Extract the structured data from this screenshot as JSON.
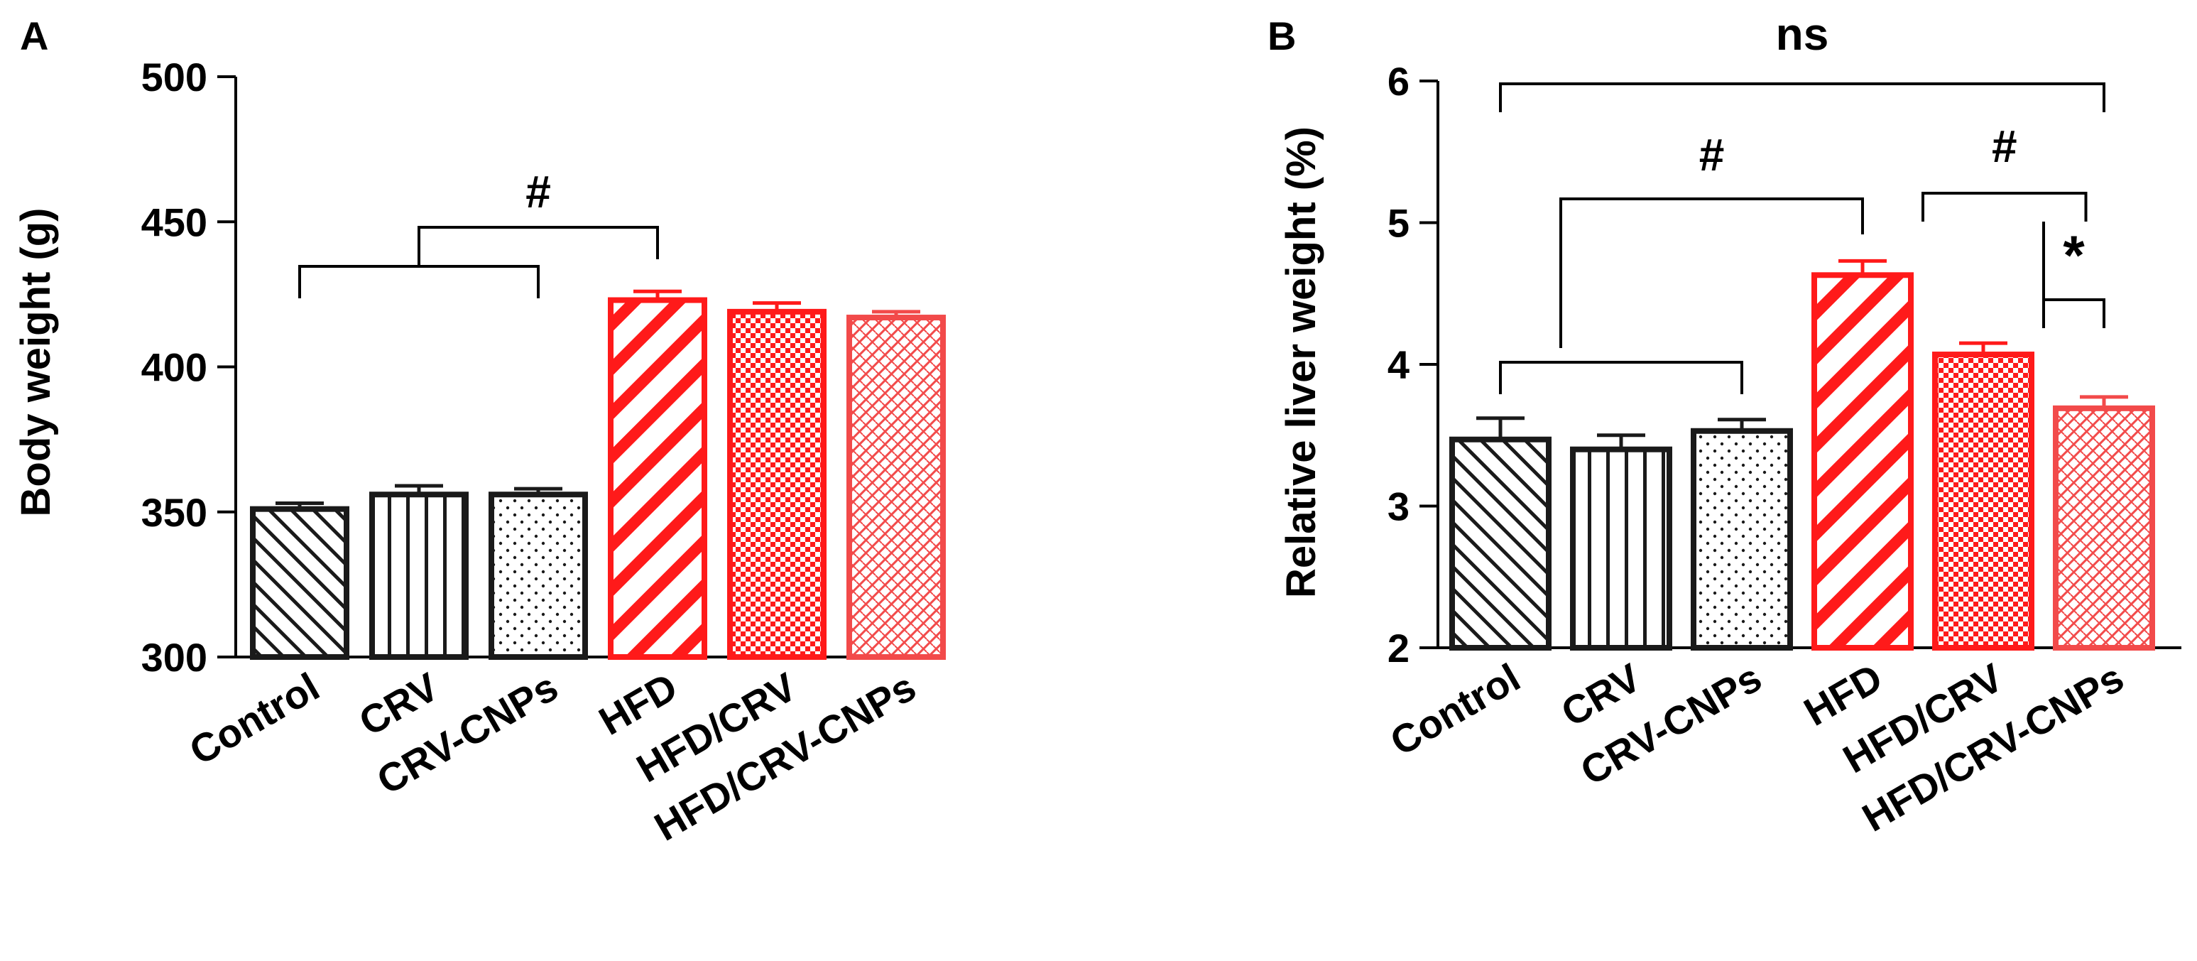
{
  "colors": {
    "black": "#1a1a1a",
    "red": "#ff1a1a",
    "lightred": "#f24a4a"
  },
  "chart_data": [
    {
      "panel_label": "A",
      "type": "bar",
      "title": "",
      "xlabel": "",
      "ylabel": "Body weight (g)",
      "ylim": [
        300,
        500
      ],
      "yticks": [
        "300",
        "350",
        "400",
        "450",
        "500"
      ],
      "categories": [
        "Control",
        "CRV",
        "CRV-CNPs",
        "HFD",
        "HFD/CRV",
        "HFD/CRV-CNPs"
      ],
      "values": [
        351,
        356,
        356,
        423,
        419,
        417
      ],
      "errors": [
        2,
        3,
        2,
        3,
        3,
        2
      ],
      "series_colors": [
        "black",
        "black",
        "black",
        "red",
        "red",
        "lightred"
      ],
      "patterns": [
        "diag-black",
        "vert-black",
        "dots-black",
        "diag-red",
        "check-red",
        "cross-lightred"
      ],
      "annotations": [
        {
          "text": "#",
          "left_group": [
            0,
            2
          ],
          "right_group": [
            3,
            3
          ]
        }
      ]
    },
    {
      "panel_label": "B",
      "type": "bar",
      "title": "",
      "xlabel": "",
      "ylabel": "Relative liver weight (%)",
      "ylim": [
        2,
        6
      ],
      "yticks": [
        "2",
        "3",
        "4",
        "5",
        "6"
      ],
      "categories": [
        "Control",
        "CRV",
        "CRV-CNPs",
        "HFD",
        "HFD/CRV",
        "HFD/CRV-CNPs"
      ],
      "values": [
        3.47,
        3.4,
        3.53,
        4.63,
        4.07,
        3.69
      ],
      "errors": [
        0.15,
        0.1,
        0.08,
        0.1,
        0.08,
        0.08
      ],
      "series_colors": [
        "black",
        "black",
        "black",
        "red",
        "red",
        "lightred"
      ],
      "patterns": [
        "diag-black",
        "vert-black",
        "dots-black",
        "diag-red",
        "check-red",
        "cross-lightred"
      ],
      "annotations": [
        {
          "text": "ns",
          "from": 0,
          "to": 5
        },
        {
          "text": "#",
          "from": 0.5,
          "to": 3
        },
        {
          "text": "#",
          "from": 3.5,
          "to": 4.85
        },
        {
          "text": "*",
          "from": 4.5,
          "to": 5
        }
      ]
    }
  ]
}
